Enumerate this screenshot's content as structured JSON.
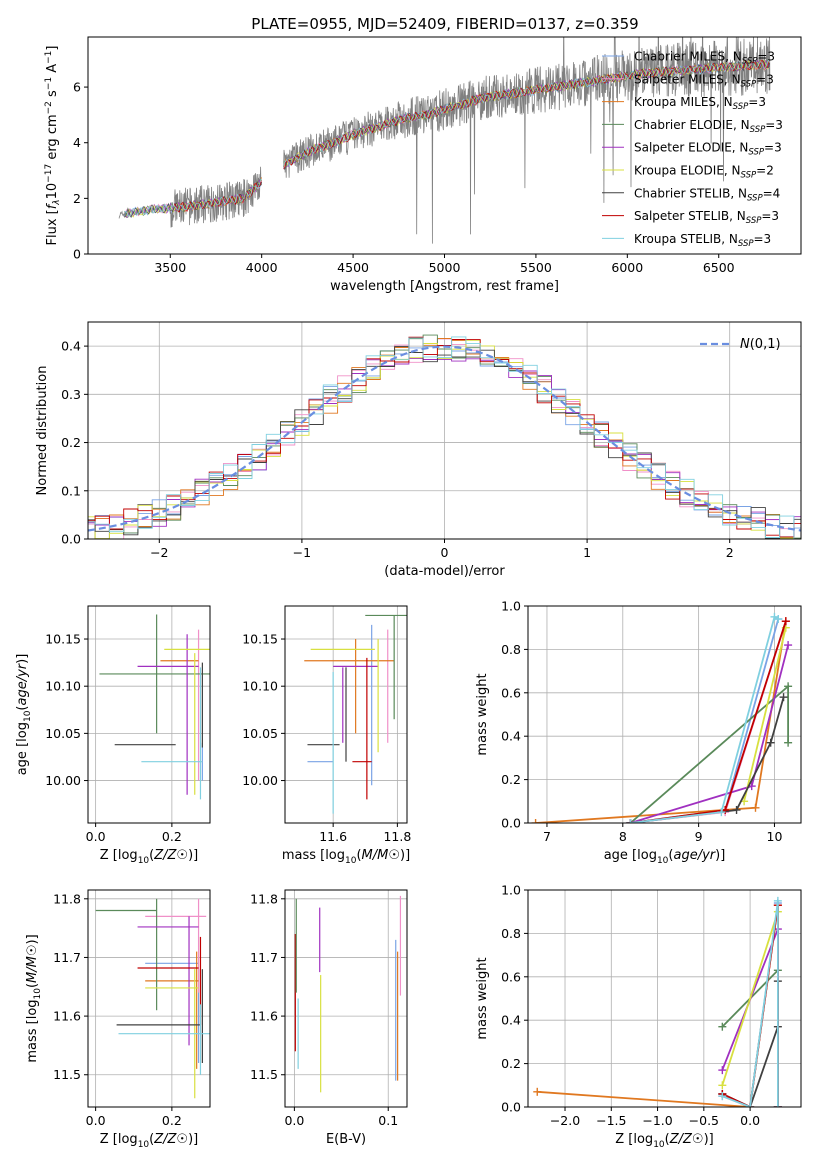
{
  "title": "PLATE=0955, MJD=52409, FIBERID=0137, z=0.359",
  "colors": {
    "Chabrier MILES": "#7aa3e5",
    "Salpeter MILES": "#f090c8",
    "Kroupa MILES": "#e07820",
    "Chabrier ELODIE": "#5a8a5a",
    "Salpeter ELODIE": "#a030c0",
    "Kroupa ELODIE": "#d8e040",
    "Chabrier STELIB": "#404040",
    "Salpeter STELIB": "#c00000",
    "Kroupa STELIB": "#80d0e0",
    "data": "#808080",
    "normal": "#6a8ee0"
  },
  "chart_data": [
    {
      "id": "spectrum",
      "type": "line",
      "xlabel": "wavelength [Angstrom, rest frame]",
      "ylabel": "Flux [f_λ 10^-17 erg cm^-2 s^-1 A^-1]",
      "xlim": [
        3050,
        6950
      ],
      "ylim": [
        0,
        7.8
      ],
      "xticks": [
        3500,
        4000,
        4500,
        5000,
        5500,
        6000,
        6500
      ],
      "yticks": [
        0,
        2,
        4,
        6
      ],
      "legend_position": "upper-right",
      "legend": [
        {
          "model": "Chabrier MILES",
          "label": "Chabrier MILES, N_SSP=3"
        },
        {
          "model": "Salpeter MILES",
          "label": "Salpeter MILES, N_SSP=3"
        },
        {
          "model": "Kroupa MILES",
          "label": "Kroupa MILES, N_SSP=3"
        },
        {
          "model": "Chabrier ELODIE",
          "label": "Chabrier ELODIE, N_SSP=3"
        },
        {
          "model": "Salpeter ELODIE",
          "label": "Salpeter ELODIE, N_SSP=3"
        },
        {
          "model": "Kroupa ELODIE",
          "label": "Kroupa ELODIE, N_SSP=2"
        },
        {
          "model": "Chabrier STELIB",
          "label": "Chabrier STELIB, N_SSP=4"
        },
        {
          "model": "Salpeter STELIB",
          "label": "Salpeter STELIB, N_SSP=3"
        },
        {
          "model": "Kroupa STELIB",
          "label": "Kroupa STELIB, N_SSP=3"
        }
      ],
      "continuum": {
        "x": [
          3220,
          3300,
          3400,
          3500,
          3600,
          3700,
          3800,
          3900,
          4000,
          4100,
          4200,
          4300,
          4400,
          4500,
          4600,
          4700,
          4800,
          4900,
          5000,
          5100,
          5200,
          5300,
          5400,
          5500,
          5600,
          5700,
          5800,
          5900,
          6000,
          6100,
          6200,
          6300,
          6400,
          6500,
          6600,
          6700,
          6780
        ],
        "y": [
          1.4,
          1.5,
          1.6,
          1.65,
          1.7,
          1.8,
          1.9,
          2.0,
          2.6,
          3.1,
          3.5,
          3.8,
          4.0,
          4.3,
          4.5,
          4.7,
          4.9,
          5.0,
          5.2,
          5.4,
          5.6,
          5.7,
          5.8,
          5.9,
          6.0,
          6.1,
          6.2,
          6.3,
          6.4,
          6.5,
          6.55,
          6.6,
          6.65,
          6.7,
          6.75,
          6.8,
          6.8
        ]
      }
    },
    {
      "id": "residuals",
      "type": "histogram",
      "xlabel": "(data-model)/error",
      "ylabel": "Normed distribution",
      "xlim": [
        -2.5,
        2.5
      ],
      "ylim": [
        0,
        0.45
      ],
      "xticks": [
        -2,
        -1,
        0,
        1,
        2
      ],
      "yticks": [
        0.0,
        0.1,
        0.2,
        0.3,
        0.4
      ],
      "grid": true,
      "legend_position": "upper-right",
      "normal_label": "N(0,1)",
      "bin_width": 0.1
    },
    {
      "id": "age-vs-Z",
      "type": "errorbar",
      "xlabel": "Z [log10(Z/Z☉)]",
      "ylabel": "age  [log10(age/yr)]",
      "xlim": [
        -0.02,
        0.3
      ],
      "ylim": [
        9.955,
        10.185
      ],
      "xticks": [
        0.0,
        0.2
      ],
      "yticks": [
        10.0,
        10.05,
        10.1,
        10.15
      ],
      "grid": true,
      "points": [
        {
          "model": "Chabrier MILES",
          "x": 0.28,
          "xerr": 0.0,
          "y": 10.02,
          "yerr": 0.02
        },
        {
          "model": "Salpeter MILES",
          "x": 0.27,
          "xerr": 0.0,
          "y": 10.08,
          "yerr": 0.08
        },
        {
          "model": "Kroupa MILES",
          "x": 0.22,
          "xerr": 0.05,
          "y": 10.127,
          "yerr": 0.0
        },
        {
          "model": "Chabrier ELODIE",
          "x": 0.16,
          "xerr": 0.15,
          "y": 10.113,
          "yerr": 0.063
        },
        {
          "model": "Salpeter ELODIE",
          "x": 0.24,
          "xerr": 0.0,
          "y": 10.07,
          "yerr": 0.085
        },
        {
          "model": "Salpeter ELODIE",
          "x": 0.19,
          "xerr": 0.08,
          "y": 10.121,
          "yerr": 0.0
        },
        {
          "model": "Kroupa ELODIE",
          "x": 0.24,
          "xerr": 0.06,
          "y": 10.139,
          "yerr": 0.0
        },
        {
          "model": "Kroupa ELODIE",
          "x": 0.26,
          "xerr": 0.0,
          "y": 10.06,
          "yerr": 0.075
        },
        {
          "model": "Chabrier STELIB",
          "x": 0.13,
          "xerr": 0.08,
          "y": 10.038,
          "yerr": 0.0
        },
        {
          "model": "Chabrier STELIB",
          "x": 0.28,
          "xerr": 0.0,
          "y": 10.08,
          "yerr": 0.045
        },
        {
          "model": "Kroupa STELIB",
          "x": 0.2,
          "xerr": 0.08,
          "y": 10.02,
          "yerr": 0.0
        },
        {
          "model": "Kroupa STELIB",
          "x": 0.275,
          "xerr": 0.0,
          "y": 10.05,
          "yerr": 0.07
        }
      ]
    },
    {
      "id": "age-vs-mass",
      "type": "errorbar",
      "xlabel": "mass [log10(M/M☉)]",
      "ylabel": "",
      "xlim": [
        11.45,
        11.83
      ],
      "ylim": [
        9.955,
        10.185
      ],
      "xticks": [
        11.6,
        11.8
      ],
      "yticks": [
        10.0,
        10.05,
        10.1,
        10.15
      ],
      "grid": true,
      "points": [
        {
          "model": "Chabrier MILES",
          "x": 11.56,
          "xerr": 0.04,
          "y": 10.02,
          "yerr": 0.0
        },
        {
          "model": "Chabrier MILES",
          "x": 11.72,
          "xerr": 0.0,
          "y": 10.08,
          "yerr": 0.085
        },
        {
          "model": "Salpeter MILES",
          "x": 11.77,
          "xerr": 0.0,
          "y": 10.1,
          "yerr": 0.06
        },
        {
          "model": "Kroupa MILES",
          "x": 11.65,
          "xerr": 0.14,
          "y": 10.127,
          "yerr": 0.0
        },
        {
          "model": "Kroupa MILES",
          "x": 11.67,
          "xerr": 0.0,
          "y": 10.1,
          "yerr": 0.05
        },
        {
          "model": "Chabrier ELODIE",
          "x": 11.77,
          "xerr": 0.07,
          "y": 10.175,
          "yerr": 0.0
        },
        {
          "model": "Chabrier ELODIE",
          "x": 11.79,
          "xerr": 0.0,
          "y": 10.12,
          "yerr": 0.055
        },
        {
          "model": "Salpeter ELODIE",
          "x": 11.67,
          "xerr": 0.07,
          "y": 10.121,
          "yerr": 0.0
        },
        {
          "model": "Salpeter ELODIE",
          "x": 11.63,
          "xerr": 0.0,
          "y": 10.08,
          "yerr": 0.04
        },
        {
          "model": "Kroupa ELODIE",
          "x": 11.63,
          "xerr": 0.1,
          "y": 10.139,
          "yerr": 0.0
        },
        {
          "model": "Kroupa ELODIE",
          "x": 11.74,
          "xerr": 0.0,
          "y": 10.09,
          "yerr": 0.06
        },
        {
          "model": "Chabrier STELIB",
          "x": 11.57,
          "xerr": 0.05,
          "y": 10.038,
          "yerr": 0.0
        },
        {
          "model": "Chabrier STELIB",
          "x": 11.64,
          "xerr": 0.0,
          "y": 10.07,
          "yerr": 0.05
        },
        {
          "model": "Salpeter STELIB",
          "x": 11.69,
          "xerr": 0.03,
          "y": 10.02,
          "yerr": 0.0
        },
        {
          "model": "Salpeter STELIB",
          "x": 11.705,
          "xerr": 0.0,
          "y": 10.055,
          "yerr": 0.075
        },
        {
          "model": "Kroupa STELIB",
          "x": 11.6,
          "xerr": 0.0,
          "y": 10.04,
          "yerr": 0.075
        }
      ]
    },
    {
      "id": "weight-vs-age",
      "type": "line",
      "xlabel": "age  [log10(age/yr)]",
      "ylabel": "mass weight",
      "xlim": [
        6.75,
        10.35
      ],
      "ylim": [
        0,
        1.0
      ],
      "xticks": [
        7,
        8,
        9,
        10
      ],
      "yticks": [
        0.0,
        0.2,
        0.4,
        0.6,
        0.8,
        1.0
      ],
      "grid": true,
      "series": [
        {
          "model": "Chabrier MILES",
          "x": [
            8.1,
            9.35,
            10.05
          ],
          "y": [
            0.0,
            0.06,
            0.94
          ]
        },
        {
          "model": "Salpeter MILES",
          "x": [
            8.1,
            9.35,
            10.15
          ],
          "y": [
            0.0,
            0.05,
            0.93
          ]
        },
        {
          "model": "Kroupa MILES",
          "x": [
            6.85,
            9.75,
            10.15
          ],
          "y": [
            0.0,
            0.07,
            0.93
          ]
        },
        {
          "model": "Chabrier ELODIE",
          "x": [
            8.1,
            10.18,
            10.18
          ],
          "y": [
            0.0,
            0.63,
            0.37
          ]
        },
        {
          "model": "Salpeter ELODIE",
          "x": [
            8.1,
            9.7,
            10.18
          ],
          "y": [
            0.0,
            0.17,
            0.82
          ]
        },
        {
          "model": "Kroupa ELODIE",
          "x": [
            9.6,
            10.15
          ],
          "y": [
            0.1,
            0.9
          ]
        },
        {
          "model": "Chabrier STELIB",
          "x": [
            8.1,
            9.5,
            9.95,
            10.12
          ],
          "y": [
            0.0,
            0.06,
            0.37,
            0.58
          ]
        },
        {
          "model": "Salpeter STELIB",
          "x": [
            8.1,
            9.35,
            10.15
          ],
          "y": [
            0.0,
            0.06,
            0.93
          ]
        },
        {
          "model": "Kroupa STELIB",
          "x": [
            8.1,
            9.3,
            10.0,
            10.05
          ],
          "y": [
            0.0,
            0.05,
            0.95,
            0.94
          ]
        }
      ]
    },
    {
      "id": "mass-vs-Z",
      "type": "errorbar",
      "xlabel": "Z [log10(Z/Z☉)]",
      "ylabel": "mass [log10(M/M☉)]",
      "xlim": [
        -0.02,
        0.3
      ],
      "ylim": [
        11.445,
        11.815
      ],
      "xticks": [
        0.0,
        0.2
      ],
      "yticks": [
        11.5,
        11.6,
        11.7,
        11.8
      ],
      "grid": true,
      "points": [
        {
          "model": "Chabrier MILES",
          "x": 0.2,
          "xerr": 0.07,
          "y": 11.69,
          "yerr": 0.0
        },
        {
          "model": "Chabrier MILES",
          "x": 0.27,
          "xerr": 0.0,
          "y": 11.6,
          "yerr": 0.08
        },
        {
          "model": "Salpeter MILES",
          "x": 0.21,
          "xerr": 0.08,
          "y": 11.77,
          "yerr": 0.0
        },
        {
          "model": "Salpeter MILES",
          "x": 0.27,
          "xerr": 0.0,
          "y": 11.72,
          "yerr": 0.08
        },
        {
          "model": "Kroupa MILES",
          "x": 0.2,
          "xerr": 0.07,
          "y": 11.66,
          "yerr": 0.0
        },
        {
          "model": "Kroupa MILES",
          "x": 0.265,
          "xerr": 0.0,
          "y": 11.61,
          "yerr": 0.1
        },
        {
          "model": "Chabrier ELODIE",
          "x": 0.08,
          "xerr": 0.08,
          "y": 11.78,
          "yerr": 0.0
        },
        {
          "model": "Chabrier ELODIE",
          "x": 0.16,
          "xerr": 0.0,
          "y": 11.705,
          "yerr": 0.095
        },
        {
          "model": "Salpeter ELODIE",
          "x": 0.19,
          "xerr": 0.08,
          "y": 11.752,
          "yerr": 0.0
        },
        {
          "model": "Salpeter ELODIE",
          "x": 0.245,
          "xerr": 0.0,
          "y": 11.66,
          "yerr": 0.11
        },
        {
          "model": "Kroupa ELODIE",
          "x": 0.2,
          "xerr": 0.07,
          "y": 11.648,
          "yerr": 0.0
        },
        {
          "model": "Kroupa ELODIE",
          "x": 0.26,
          "xerr": 0.0,
          "y": 11.57,
          "yerr": 0.11
        },
        {
          "model": "Chabrier STELIB",
          "x": 0.165,
          "xerr": 0.11,
          "y": 11.585,
          "yerr": 0.0
        },
        {
          "model": "Chabrier STELIB",
          "x": 0.28,
          "xerr": 0.0,
          "y": 11.6,
          "yerr": 0.08
        },
        {
          "model": "Salpeter STELIB",
          "x": 0.19,
          "xerr": 0.08,
          "y": 11.682,
          "yerr": 0.0
        },
        {
          "model": "Salpeter STELIB",
          "x": 0.275,
          "xerr": 0.0,
          "y": 11.66,
          "yerr": 0.075
        },
        {
          "model": "Kroupa STELIB",
          "x": 0.18,
          "xerr": 0.12,
          "y": 11.57,
          "yerr": 0.0
        },
        {
          "model": "Kroupa STELIB",
          "x": 0.275,
          "xerr": 0.0,
          "y": 11.56,
          "yerr": 0.06
        }
      ]
    },
    {
      "id": "mass-vs-ebv",
      "type": "errorbar",
      "xlabel": "E(B-V)",
      "ylabel": "",
      "xlim": [
        -0.01,
        0.12
      ],
      "ylim": [
        11.445,
        11.815
      ],
      "xticks": [
        0.0,
        0.1
      ],
      "yticks": [
        11.5,
        11.6,
        11.7,
        11.8
      ],
      "grid": true,
      "points": [
        {
          "model": "Salpeter STELIB",
          "x": 0.001,
          "xerr": 0.0,
          "y": 11.64,
          "yerr": 0.1
        },
        {
          "model": "Chabrier ELODIE",
          "x": 0.002,
          "xerr": 0.0,
          "y": 11.72,
          "yerr": 0.08
        },
        {
          "model": "Kroupa STELIB",
          "x": 0.004,
          "xerr": 0.0,
          "y": 11.57,
          "yerr": 0.06
        },
        {
          "model": "Kroupa ELODIE",
          "x": 0.028,
          "xerr": 0.0,
          "y": 11.57,
          "yerr": 0.1
        },
        {
          "model": "Salpeter ELODIE",
          "x": 0.027,
          "xerr": 0.0,
          "y": 11.73,
          "yerr": 0.055
        },
        {
          "model": "Chabrier MILES",
          "x": 0.108,
          "xerr": 0.0,
          "y": 11.61,
          "yerr": 0.12
        },
        {
          "model": "Kroupa MILES",
          "x": 0.11,
          "xerr": 0.0,
          "y": 11.6,
          "yerr": 0.11
        },
        {
          "model": "Salpeter MILES",
          "x": 0.113,
          "xerr": 0.0,
          "y": 11.72,
          "yerr": 0.085
        }
      ]
    },
    {
      "id": "weight-vs-Z",
      "type": "line",
      "xlabel": "Z [log10(Z/Z☉)]",
      "ylabel": "mass weight",
      "xlim": [
        -2.4,
        0.55
      ],
      "ylim": [
        0,
        1.0
      ],
      "xticks": [
        -2.0,
        -1.5,
        -1.0,
        -0.5,
        0.0
      ],
      "yticks": [
        0.0,
        0.2,
        0.4,
        0.6,
        0.8,
        1.0
      ],
      "grid": true,
      "series": [
        {
          "model": "Chabrier MILES",
          "x": [
            -0.3,
            0.0,
            0.3,
            0.3
          ],
          "y": [
            0.06,
            0.0,
            0.94,
            0.0
          ]
        },
        {
          "model": "Salpeter MILES",
          "x": [
            -0.3,
            0.0,
            0.3,
            0.3
          ],
          "y": [
            0.05,
            0.0,
            0.93,
            0.0
          ]
        },
        {
          "model": "Kroupa MILES",
          "x": [
            -2.3,
            0.0,
            0.3,
            0.3
          ],
          "y": [
            0.07,
            0.0,
            0.93,
            0.0
          ]
        },
        {
          "model": "Chabrier ELODIE",
          "x": [
            -0.3,
            0.3,
            0.3
          ],
          "y": [
            0.37,
            0.63,
            0.0
          ]
        },
        {
          "model": "Salpeter ELODIE",
          "x": [
            -0.3,
            0.3,
            0.3
          ],
          "y": [
            0.17,
            0.82,
            0.0
          ]
        },
        {
          "model": "Kroupa ELODIE",
          "x": [
            -0.3,
            0.3
          ],
          "y": [
            0.1,
            0.9
          ]
        },
        {
          "model": "Chabrier STELIB",
          "x": [
            -0.3,
            0.0,
            0.3,
            0.3,
            0.3
          ],
          "y": [
            0.06,
            0.0,
            0.37,
            0.58,
            0.0
          ]
        },
        {
          "model": "Salpeter STELIB",
          "x": [
            -0.3,
            0.0,
            0.3,
            0.3
          ],
          "y": [
            0.06,
            0.0,
            0.93,
            0.0
          ]
        },
        {
          "model": "Kroupa STELIB",
          "x": [
            -0.3,
            0.0,
            0.3,
            0.3
          ],
          "y": [
            0.05,
            0.0,
            0.95,
            0.0
          ]
        }
      ]
    }
  ]
}
